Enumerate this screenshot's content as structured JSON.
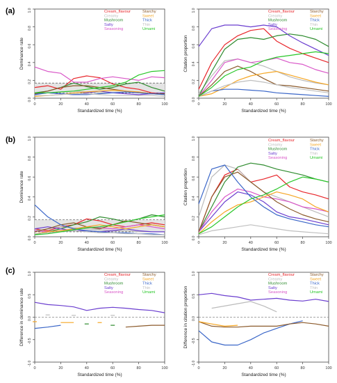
{
  "panel_labels": [
    "(a)",
    "(b)",
    "(c)"
  ],
  "colors": {
    "Cream_flavour": "#e8252a",
    "Creamy": "#bbbbbb",
    "Mushroom": "#2e8b2e",
    "Salty": "#6a3dcf",
    "Seasoning": "#d957c8",
    "Starchy": "#8b5a2b",
    "Sweet": "#f5a623",
    "Thick": "#3a66c8",
    "Thin": "#bfbfbf",
    "Umami": "#28c728"
  },
  "chart_data": [
    {
      "id": "a-left",
      "type": "line",
      "xlabel": "Standardized time (%)",
      "ylabel": "Dominance rate",
      "xlim": [
        0,
        100
      ],
      "ylim": [
        0,
        1
      ],
      "xticks": [
        "0",
        "20",
        "40",
        "60",
        "80",
        "100"
      ],
      "yticks": [
        "0.0",
        "0.2",
        "0.4",
        "0.6",
        "0.8",
        "1.0"
      ],
      "legend": [
        "Cream_flavour",
        "Creamy",
        "Mushroom",
        "Salty",
        "Seasoning",
        "Starchy",
        "Sweet",
        "Thick",
        "Thin",
        "Umami"
      ],
      "band": [
        0.06,
        0.17
      ],
      "x": [
        0,
        10,
        20,
        30,
        40,
        50,
        60,
        70,
        80,
        90,
        100
      ],
      "series": [
        {
          "name": "Cream_flavour",
          "values": [
            0.12,
            0.14,
            0.1,
            0.22,
            0.25,
            0.23,
            0.16,
            0.12,
            0.1,
            0.06,
            0.05
          ]
        },
        {
          "name": "Creamy",
          "values": [
            0.05,
            0.06,
            0.07,
            0.08,
            0.07,
            0.06,
            0.06,
            0.07,
            0.06,
            0.05,
            0.04
          ]
        },
        {
          "name": "Mushroom",
          "values": [
            0.06,
            0.08,
            0.12,
            0.17,
            0.13,
            0.1,
            0.12,
            0.16,
            0.18,
            0.12,
            0.08
          ]
        },
        {
          "name": "Salty",
          "values": [
            0.05,
            0.06,
            0.05,
            0.04,
            0.06,
            0.08,
            0.06,
            0.05,
            0.04,
            0.05,
            0.06
          ]
        },
        {
          "name": "Seasoning",
          "values": [
            0.35,
            0.3,
            0.28,
            0.18,
            0.18,
            0.22,
            0.24,
            0.22,
            0.2,
            0.24,
            0.23
          ]
        },
        {
          "name": "Starchy",
          "values": [
            0.05,
            0.08,
            0.12,
            0.14,
            0.14,
            0.12,
            0.1,
            0.08,
            0.06,
            0.05,
            0.05
          ]
        },
        {
          "name": "Sweet",
          "values": [
            0.02,
            0.03,
            0.04,
            0.06,
            0.07,
            0.08,
            0.09,
            0.08,
            0.07,
            0.05,
            0.04
          ]
        },
        {
          "name": "Thick",
          "values": [
            0.04,
            0.06,
            0.05,
            0.04,
            0.04,
            0.05,
            0.06,
            0.07,
            0.06,
            0.05,
            0.04
          ]
        },
        {
          "name": "Thin",
          "values": [
            0.03,
            0.03,
            0.04,
            0.05,
            0.05,
            0.04,
            0.03,
            0.03,
            0.03,
            0.03,
            0.02
          ]
        },
        {
          "name": "Umami",
          "values": [
            0.06,
            0.06,
            0.07,
            0.08,
            0.1,
            0.12,
            0.14,
            0.18,
            0.26,
            0.3,
            0.31
          ]
        }
      ]
    },
    {
      "id": "a-right",
      "type": "line",
      "xlabel": "Standardized time (%)",
      "ylabel": "Citation proportion",
      "xlim": [
        0,
        100
      ],
      "ylim": [
        0,
        1
      ],
      "xticks": [
        "0",
        "20",
        "40",
        "60",
        "80",
        "100"
      ],
      "yticks": [
        "0.0",
        "0.2",
        "0.4",
        "0.6",
        "0.8",
        "1.0"
      ],
      "legend": [
        "Cream_flavour",
        "Creamy",
        "Mushroom",
        "Salty",
        "Seasoning",
        "Starchy",
        "Sweet",
        "Thick",
        "Thin",
        "Umami"
      ],
      "x": [
        0,
        10,
        20,
        30,
        40,
        50,
        60,
        70,
        80,
        90,
        100
      ],
      "series": [
        {
          "name": "Cream_flavour",
          "values": [
            0.1,
            0.4,
            0.6,
            0.7,
            0.76,
            0.78,
            0.64,
            0.56,
            0.5,
            0.45,
            0.4
          ]
        },
        {
          "name": "Creamy",
          "values": [
            0.05,
            0.25,
            0.42,
            0.44,
            0.4,
            0.36,
            0.3,
            0.24,
            0.2,
            0.17,
            0.15
          ]
        },
        {
          "name": "Mushroom",
          "values": [
            0.02,
            0.3,
            0.55,
            0.66,
            0.68,
            0.66,
            0.7,
            0.72,
            0.7,
            0.66,
            0.58
          ]
        },
        {
          "name": "Salty",
          "values": [
            0.58,
            0.78,
            0.82,
            0.82,
            0.8,
            0.82,
            0.8,
            0.7,
            0.62,
            0.55,
            0.48
          ]
        },
        {
          "name": "Seasoning",
          "values": [
            0.02,
            0.2,
            0.4,
            0.44,
            0.4,
            0.42,
            0.45,
            0.4,
            0.38,
            0.32,
            0.28
          ]
        },
        {
          "name": "Starchy",
          "values": [
            0.02,
            0.15,
            0.3,
            0.36,
            0.3,
            0.22,
            0.15,
            0.14,
            0.12,
            0.1,
            0.08
          ]
        },
        {
          "name": "Sweet",
          "values": [
            0.02,
            0.05,
            0.12,
            0.2,
            0.25,
            0.28,
            0.3,
            0.26,
            0.22,
            0.18,
            0.15
          ]
        },
        {
          "name": "Thick",
          "values": [
            0.02,
            0.08,
            0.1,
            0.1,
            0.09,
            0.08,
            0.06,
            0.05,
            0.04,
            0.03,
            0.02
          ]
        },
        {
          "name": "Thin",
          "values": [
            0.02,
            0.08,
            0.14,
            0.18,
            0.2,
            0.18,
            0.15,
            0.12,
            0.1,
            0.08,
            0.06
          ]
        },
        {
          "name": "Umami",
          "values": [
            0.02,
            0.12,
            0.25,
            0.32,
            0.35,
            0.42,
            0.46,
            0.48,
            0.5,
            0.52,
            0.5
          ]
        }
      ]
    },
    {
      "id": "b-left",
      "type": "line",
      "xlabel": "Standardized time (%)",
      "ylabel": "Dominance rate",
      "xlim": [
        0,
        100
      ],
      "ylim": [
        0,
        1
      ],
      "xticks": [
        "0",
        "20",
        "40",
        "60",
        "80",
        "100"
      ],
      "yticks": [
        "0.0",
        "0.2",
        "0.4",
        "0.6",
        "0.8",
        "1.0"
      ],
      "legend": [],
      "band": [
        0.05,
        0.17
      ],
      "x": [
        0,
        10,
        20,
        30,
        40,
        50,
        60,
        70,
        80,
        90,
        100
      ],
      "series": [
        {
          "name": "Cream_flavour",
          "values": [
            0.08,
            0.06,
            0.1,
            0.12,
            0.18,
            0.16,
            0.12,
            0.1,
            0.12,
            0.14,
            0.12
          ]
        },
        {
          "name": "Creamy",
          "values": [
            0.06,
            0.08,
            0.1,
            0.09,
            0.08,
            0.07,
            0.06,
            0.06,
            0.05,
            0.05,
            0.05
          ]
        },
        {
          "name": "Mushroom",
          "values": [
            0.02,
            0.05,
            0.08,
            0.12,
            0.15,
            0.2,
            0.18,
            0.15,
            0.18,
            0.22,
            0.2
          ]
        },
        {
          "name": "Salty",
          "values": [
            0.08,
            0.1,
            0.08,
            0.06,
            0.06,
            0.05,
            0.06,
            0.08,
            0.06,
            0.05,
            0.05
          ]
        },
        {
          "name": "Seasoning",
          "values": [
            0.06,
            0.05,
            0.06,
            0.08,
            0.1,
            0.09,
            0.08,
            0.1,
            0.12,
            0.1,
            0.08
          ]
        },
        {
          "name": "Starchy",
          "values": [
            0.05,
            0.08,
            0.12,
            0.14,
            0.1,
            0.08,
            0.12,
            0.16,
            0.14,
            0.12,
            0.1
          ]
        },
        {
          "name": "Sweet",
          "values": [
            0.03,
            0.05,
            0.06,
            0.08,
            0.1,
            0.12,
            0.1,
            0.08,
            0.1,
            0.12,
            0.1
          ]
        },
        {
          "name": "Thick",
          "values": [
            0.32,
            0.2,
            0.12,
            0.08,
            0.06,
            0.05,
            0.04,
            0.04,
            0.03,
            0.03,
            0.02
          ]
        },
        {
          "name": "Thin",
          "values": [
            0.03,
            0.04,
            0.05,
            0.06,
            0.05,
            0.04,
            0.04,
            0.03,
            0.03,
            0.02,
            0.02
          ]
        },
        {
          "name": "Umami",
          "values": [
            0.02,
            0.03,
            0.05,
            0.07,
            0.09,
            0.1,
            0.12,
            0.15,
            0.18,
            0.2,
            0.22
          ]
        }
      ]
    },
    {
      "id": "b-right",
      "type": "line",
      "xlabel": "Standardized time (%)",
      "ylabel": "Citation proportion",
      "xlim": [
        0,
        100
      ],
      "ylim": [
        0,
        1
      ],
      "xticks": [
        "0",
        "20",
        "40",
        "60",
        "80",
        "100"
      ],
      "yticks": [
        "0.0",
        "0.2",
        "0.4",
        "0.6",
        "0.8",
        "1.0"
      ],
      "legend": [
        "Cream_flavour",
        "Creamy",
        "Mushroom",
        "Salty",
        "Seasoning",
        "Starchy",
        "Sweet",
        "Thick",
        "Thin",
        "Umami"
      ],
      "x": [
        0,
        10,
        20,
        30,
        40,
        50,
        60,
        70,
        80,
        90,
        100
      ],
      "series": [
        {
          "name": "Cream_flavour",
          "values": [
            0.05,
            0.4,
            0.62,
            0.68,
            0.55,
            0.58,
            0.62,
            0.5,
            0.45,
            0.42,
            0.38
          ]
        },
        {
          "name": "Creamy",
          "values": [
            0.2,
            0.6,
            0.72,
            0.68,
            0.55,
            0.45,
            0.4,
            0.35,
            0.3,
            0.25,
            0.2
          ]
        },
        {
          "name": "Mushroom",
          "values": [
            0.05,
            0.3,
            0.55,
            0.7,
            0.74,
            0.72,
            0.68,
            0.65,
            0.62,
            0.58,
            0.55
          ]
        },
        {
          "name": "Salty",
          "values": [
            0.05,
            0.2,
            0.35,
            0.45,
            0.42,
            0.35,
            0.25,
            0.2,
            0.18,
            0.15,
            0.12
          ]
        },
        {
          "name": "Seasoning",
          "values": [
            0.05,
            0.25,
            0.4,
            0.48,
            0.45,
            0.4,
            0.38,
            0.35,
            0.3,
            0.28,
            0.25
          ]
        },
        {
          "name": "Starchy",
          "values": [
            0.05,
            0.4,
            0.6,
            0.65,
            0.55,
            0.45,
            0.35,
            0.28,
            0.22,
            0.18,
            0.15
          ]
        },
        {
          "name": "Sweet",
          "values": [
            0.03,
            0.15,
            0.25,
            0.32,
            0.35,
            0.4,
            0.45,
            0.42,
            0.38,
            0.3,
            0.25
          ]
        },
        {
          "name": "Thick",
          "values": [
            0.33,
            0.68,
            0.72,
            0.55,
            0.4,
            0.3,
            0.22,
            0.18,
            0.15,
            0.12,
            0.1
          ]
        },
        {
          "name": "Thin",
          "values": [
            0.02,
            0.06,
            0.08,
            0.1,
            0.12,
            0.1,
            0.08,
            0.06,
            0.05,
            0.04,
            0.03
          ]
        },
        {
          "name": "Umami",
          "values": [
            0.03,
            0.1,
            0.2,
            0.3,
            0.38,
            0.42,
            0.48,
            0.55,
            0.6,
            0.58,
            0.55
          ]
        }
      ]
    },
    {
      "id": "c-left",
      "type": "line",
      "xlabel": "Standardized time (%)",
      "ylabel": "Difference in dominance rate",
      "xlim": [
        0,
        100
      ],
      "ylim": [
        -1,
        1
      ],
      "xticks": [
        "0",
        "20",
        "40",
        "60",
        "80",
        "100"
      ],
      "yticks": [
        "-1.0",
        "-0.5",
        "0.0",
        "0.5",
        "1.0"
      ],
      "legend": [
        "Cream_flavour",
        "Creamy",
        "Mushroom",
        "Salty",
        "Seasoning",
        "Starchy",
        "Sweet",
        "Thick",
        "Thin",
        "Umami"
      ],
      "x": [
        0,
        10,
        20,
        30,
        40,
        50,
        60,
        70,
        80,
        90,
        100
      ],
      "series": [
        {
          "name": "Salty",
          "values": [
            0.33,
            0.28,
            0.26,
            0.23,
            0.15,
            0.2,
            0.22,
            0.2,
            0.17,
            0.15,
            0.1
          ]
        },
        {
          "name": "Thick",
          "values": [
            -0.25,
            -0.22,
            -0.18,
            null,
            null,
            null,
            null,
            null,
            null,
            null,
            null
          ]
        },
        {
          "name": "Starchy",
          "values": [
            null,
            null,
            null,
            null,
            null,
            null,
            null,
            -0.22,
            -0.2,
            -0.18,
            -0.18
          ]
        },
        {
          "name": "Creamy",
          "values": [
            null,
            0.05,
            null,
            0.04,
            null,
            null,
            0.04,
            null,
            null,
            null,
            null
          ]
        },
        {
          "name": "Sweet",
          "values": [
            -0.1,
            null,
            -0.12,
            -0.12,
            null,
            -0.12,
            null,
            null,
            null,
            null,
            null
          ]
        },
        {
          "name": "Mushroom",
          "values": [
            null,
            null,
            null,
            null,
            -0.15,
            null,
            -0.18,
            null,
            null,
            null,
            null
          ]
        }
      ]
    },
    {
      "id": "c-right",
      "type": "line",
      "xlabel": "Standardized time (%)",
      "ylabel": "Difference in citation proportion",
      "xlim": [
        0,
        100
      ],
      "ylim": [
        -1,
        1
      ],
      "xticks": [
        "0",
        "20",
        "40",
        "60",
        "80",
        "100"
      ],
      "yticks": [
        "-1.0",
        "-0.5",
        "0.0",
        "0.5",
        "1.0"
      ],
      "legend": [
        "Cream_flavour",
        "Creamy",
        "Mushroom",
        "Salty",
        "Seasoning",
        "Starchy",
        "Sweet",
        "Thick",
        "Thin",
        "Umami"
      ],
      "x": [
        0,
        10,
        20,
        30,
        40,
        50,
        60,
        70,
        80,
        90,
        100
      ],
      "series": [
        {
          "name": "Salty",
          "values": [
            0.5,
            0.53,
            0.48,
            0.45,
            0.38,
            0.4,
            0.42,
            0.38,
            0.36,
            0.4,
            0.35
          ]
        },
        {
          "name": "Creamy",
          "values": [
            null,
            0.2,
            0.25,
            0.3,
            0.35,
            0.25,
            0.12,
            null,
            null,
            null,
            null
          ]
        },
        {
          "name": "Thick",
          "values": [
            -0.3,
            -0.55,
            -0.62,
            -0.62,
            -0.5,
            -0.35,
            -0.25,
            -0.15,
            -0.08,
            null,
            null
          ]
        },
        {
          "name": "Starchy",
          "values": [
            -0.1,
            -0.2,
            -0.22,
            -0.22,
            -0.2,
            -0.2,
            -0.2,
            -0.15,
            -0.12,
            -0.15,
            -0.2
          ]
        },
        {
          "name": "Sweet",
          "values": [
            -0.1,
            -0.15,
            -0.2,
            -0.18,
            null,
            null,
            null,
            null,
            null,
            null,
            null
          ]
        }
      ]
    }
  ]
}
